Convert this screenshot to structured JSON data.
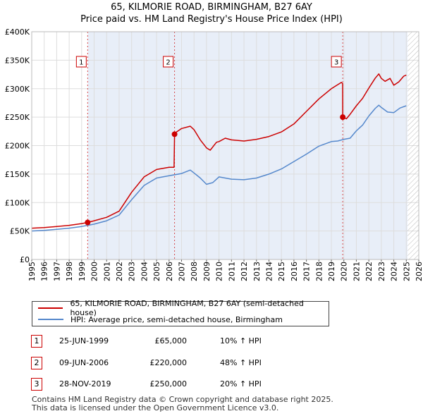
{
  "title": {
    "line1": "65, KILMORIE ROAD, BIRMINGHAM, B27 6AY",
    "line2": "Price paid vs. HM Land Registry's House Price Index (HPI)"
  },
  "colors": {
    "property_line": "#cc0000",
    "hpi_line": "#5588cc",
    "shade": "#e8eef8",
    "grid": "#dddddd",
    "marker_box": "#cc0000"
  },
  "legend": {
    "property_label": "65, KILMORIE ROAD, BIRMINGHAM, B27 6AY (semi-detached house)",
    "hpi_label": "HPI: Average price, semi-detached house, Birmingham"
  },
  "transactions": [
    {
      "num": "1",
      "date": "25-JUN-1999",
      "price": "£65,000",
      "hpi": "10% ↑ HPI"
    },
    {
      "num": "2",
      "date": "09-JUN-2006",
      "price": "£220,000",
      "hpi": "48% ↑ HPI"
    },
    {
      "num": "3",
      "date": "28-NOV-2019",
      "price": "£250,000",
      "hpi": "20% ↑ HPI"
    }
  ],
  "footer": {
    "line1": "Contains HM Land Registry data © Crown copyright and database right 2025.",
    "line2": "This data is licensed under the Open Government Licence v3.0."
  },
  "chart_data": {
    "type": "line",
    "xlim": [
      1995,
      2026
    ],
    "ylim": [
      0,
      400000
    ],
    "yticks": [
      0,
      50000,
      100000,
      150000,
      200000,
      250000,
      300000,
      350000,
      400000
    ],
    "ytick_labels": [
      "£0",
      "£50K",
      "£100K",
      "£150K",
      "£200K",
      "£250K",
      "£300K",
      "£350K",
      "£400K"
    ],
    "xticks": [
      1995,
      1996,
      1997,
      1998,
      1999,
      2000,
      2001,
      2002,
      2003,
      2004,
      2005,
      2006,
      2007,
      2008,
      2009,
      2010,
      2011,
      2012,
      2013,
      2014,
      2015,
      2016,
      2017,
      2018,
      2019,
      2020,
      2021,
      2022,
      2023,
      2024,
      2025,
      2026
    ],
    "shaded_from": 1999.48,
    "future_from": 2025.1,
    "sales": [
      {
        "label": "1",
        "x": 1999.48,
        "y": 65000
      },
      {
        "label": "2",
        "x": 2006.44,
        "y": 220000
      },
      {
        "label": "3",
        "x": 2019.91,
        "y": 250000
      }
    ],
    "series": [
      {
        "name": "65, KILMORIE ROAD, BIRMINGHAM, B27 6AY (semi-detached house)",
        "x": [
          1995,
          1996,
          1997,
          1998,
          1999,
          1999.48,
          2000,
          2001,
          2002,
          2003,
          2004,
          2005,
          2006,
          2006.4,
          2006.44,
          2006.6,
          2007,
          2007.7,
          2008,
          2008.5,
          2009,
          2009.3,
          2009.8,
          2010,
          2010.5,
          2011,
          2012,
          2013,
          2014,
          2015,
          2016,
          2017,
          2018,
          2019,
          2019.8,
          2019.9,
          2019.91,
          2020.2,
          2020.5,
          2021,
          2021.5,
          2022,
          2022.5,
          2022.8,
          2023,
          2023.3,
          2023.7,
          2024,
          2024.4,
          2024.8,
          2025
        ],
        "y": [
          55000,
          56000,
          58000,
          60000,
          63000,
          65000,
          68000,
          74000,
          85000,
          118000,
          145000,
          158000,
          162000,
          162000,
          220000,
          224000,
          230000,
          234000,
          228000,
          210000,
          196000,
          192000,
          206000,
          207000,
          213000,
          210000,
          208000,
          211000,
          216000,
          224000,
          238000,
          260000,
          282000,
          300000,
          311000,
          309000,
          250000,
          247000,
          255000,
          270000,
          283000,
          301000,
          318000,
          326000,
          318000,
          313000,
          318000,
          306000,
          312000,
          322000,
          324000
        ]
      },
      {
        "name": "HPI: Average price, semi-detached house, Birmingham",
        "x": [
          1995,
          1996,
          1997,
          1998,
          1999,
          2000,
          2001,
          2002,
          2003,
          2004,
          2005,
          2006,
          2007,
          2007.7,
          2008,
          2008.5,
          2009,
          2009.5,
          2010,
          2010.5,
          2011,
          2012,
          2013,
          2014,
          2015,
          2016,
          2017,
          2018,
          2019,
          2019.5,
          2020,
          2020.5,
          2021,
          2021.5,
          2022,
          2022.5,
          2022.8,
          2023,
          2023.5,
          2024,
          2024.5,
          2025
        ],
        "y": [
          50000,
          51000,
          53000,
          55000,
          58000,
          62000,
          68000,
          78000,
          105000,
          130000,
          143000,
          147000,
          151000,
          157000,
          152000,
          143000,
          132000,
          135000,
          145000,
          143000,
          141000,
          140000,
          143000,
          150000,
          159000,
          172000,
          185000,
          199000,
          207000,
          208000,
          211000,
          213000,
          226000,
          236000,
          252000,
          265000,
          271000,
          267000,
          259000,
          258000,
          266000,
          270000
        ]
      }
    ]
  }
}
